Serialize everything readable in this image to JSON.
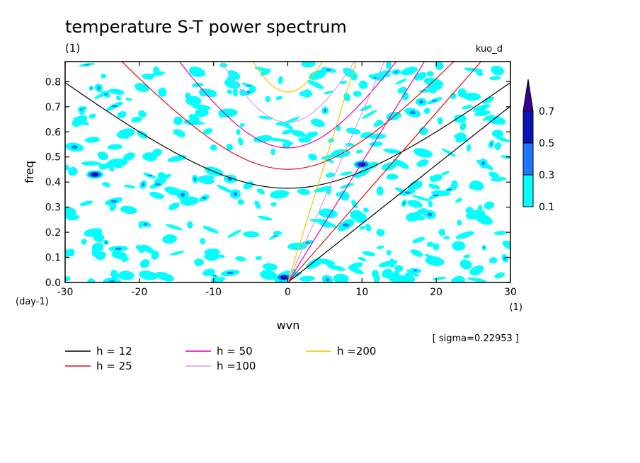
{
  "chart_data": {
    "type": "contour",
    "title": "temperature S-T power spectrum",
    "units_label": "(1)",
    "model_label": "kuo_d",
    "xlabel": "wvn",
    "x_units": "(1)",
    "ylabel": "freq",
    "y_units": "(day-1)",
    "xlim": [
      -30,
      30
    ],
    "ylim": [
      0,
      0.88
    ],
    "x_ticks": [
      -30,
      -20,
      -10,
      0,
      10,
      20,
      30
    ],
    "x_tick_labels": [
      "-30",
      "-20",
      "-10",
      "0",
      "10",
      "20",
      "30"
    ],
    "y_ticks": [
      0,
      0.1,
      0.2,
      0.3,
      0.4,
      0.5,
      0.6,
      0.7,
      0.8
    ],
    "y_tick_labels": [
      "0.0",
      "0.1",
      "0.2",
      "0.3",
      "0.4",
      "0.5",
      "0.6",
      "0.7",
      "0.8"
    ],
    "sigma_note": "[ sigma=0.22953 ]",
    "contour_levels": [
      {
        "label": "0.1",
        "value": 0.1,
        "color": "#00ffff"
      },
      {
        "label": "0.3",
        "value": 0.3,
        "color": "#1e78ff"
      },
      {
        "label": "0.5",
        "value": 0.5,
        "color": "#0a14b4"
      },
      {
        "label": "0.7",
        "value": 0.7,
        "color": "#3c0096"
      }
    ],
    "dispersion_curves": [
      {
        "label": "h = 12",
        "h": 12,
        "color": "#000000"
      },
      {
        "label": "h = 25",
        "h": 25,
        "color": "#e01010"
      },
      {
        "label": "h = 50",
        "h": 50,
        "color": "#e000b4"
      },
      {
        "label": "h =100",
        "h": 100,
        "color": "#d79ee6"
      },
      {
        "label": "h =200",
        "h": 200,
        "color": "#f0c800"
      }
    ],
    "notable_peaks": [
      {
        "x": 10,
        "y": 0.47,
        "level": 0.5
      },
      {
        "x": -0.5,
        "y": 0.02,
        "level": 0.5
      },
      {
        "x": -26,
        "y": 0.43,
        "level": 0.5
      }
    ]
  }
}
